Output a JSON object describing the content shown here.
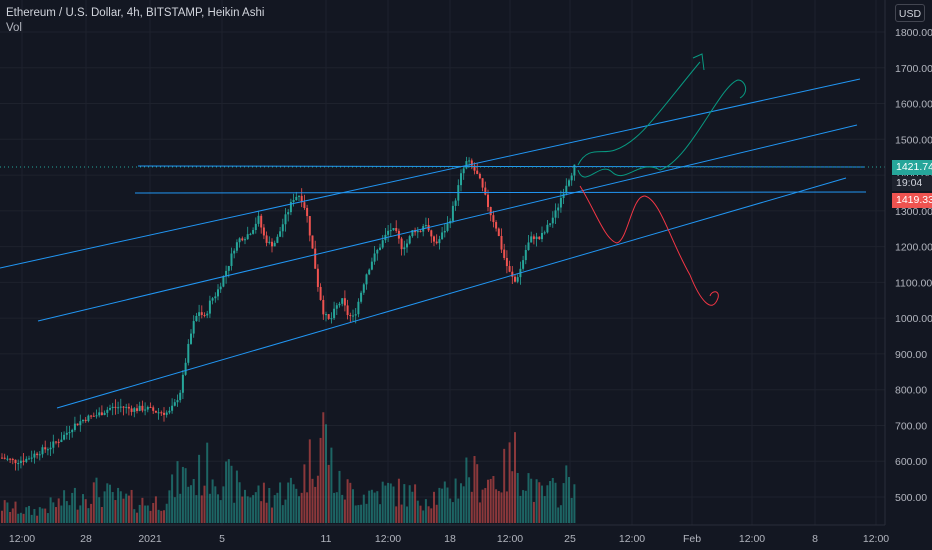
{
  "header": {
    "title": "Ethereum / U.S. Dollar, 4h, BITSTAMP, Heikin Ashi",
    "volume_label": "Vol"
  },
  "currency_button": "USD",
  "price_badges": {
    "last_price": "1421.74",
    "countdown": "19:04",
    "lower_price": "1419.33"
  },
  "colors": {
    "background": "#131722",
    "up": "#26a69a",
    "down": "#ef5350",
    "trendline": "#2196f3",
    "forecast_up": "#089981",
    "forecast_down": "#f23645"
  },
  "chart_data": {
    "type": "candlestick",
    "y_axis": {
      "ticks": [
        "1800.00",
        "1700.00",
        "1600.00",
        "1500.00",
        "1400.00",
        "1300.00",
        "1200.00",
        "1100.00",
        "1000.00",
        "900.00",
        "800.00",
        "700.00",
        "600.00",
        "500.00"
      ],
      "range": [
        460,
        1880
      ]
    },
    "x_axis": {
      "ticks": [
        "12:00",
        "28",
        "2021",
        "5",
        "11",
        "12:00",
        "18",
        "12:00",
        "25",
        "12:00",
        "Feb",
        "12:00",
        "8",
        "12:00"
      ]
    },
    "price_path": [
      [
        0,
        610
      ],
      [
        2,
        600
      ],
      [
        4,
        605
      ],
      [
        6,
        625
      ],
      [
        8,
        640
      ],
      [
        10,
        665
      ],
      [
        12,
        700
      ],
      [
        14,
        720
      ],
      [
        16,
        730
      ],
      [
        18,
        748
      ],
      [
        20,
        752
      ],
      [
        22,
        745
      ],
      [
        24,
        748
      ],
      [
        26,
        738
      ],
      [
        28,
        735
      ],
      [
        29,
        760
      ],
      [
        30,
        800
      ],
      [
        31,
        900
      ],
      [
        32,
        980
      ],
      [
        33,
        1020
      ],
      [
        34,
        1000
      ],
      [
        35,
        1050
      ],
      [
        36,
        1070
      ],
      [
        37,
        1110
      ],
      [
        38,
        1150
      ],
      [
        39,
        1200
      ],
      [
        40,
        1225
      ],
      [
        41,
        1230
      ],
      [
        42,
        1250
      ],
      [
        43,
        1280
      ],
      [
        44,
        1225
      ],
      [
        45,
        1205
      ],
      [
        46,
        1215
      ],
      [
        47,
        1260
      ],
      [
        48,
        1300
      ],
      [
        49,
        1340
      ],
      [
        50,
        1345
      ],
      [
        51,
        1300
      ],
      [
        52,
        1200
      ],
      [
        53,
        1090
      ],
      [
        54,
        1010
      ],
      [
        55,
        990
      ],
      [
        56,
        1030
      ],
      [
        57,
        1050
      ],
      [
        58,
        1010
      ],
      [
        59,
        1000
      ],
      [
        60,
        1060
      ],
      [
        61,
        1120
      ],
      [
        62,
        1160
      ],
      [
        63,
        1190
      ],
      [
        64,
        1220
      ],
      [
        65,
        1250
      ],
      [
        66,
        1240
      ],
      [
        67,
        1200
      ],
      [
        68,
        1210
      ],
      [
        69,
        1250
      ],
      [
        70,
        1240
      ],
      [
        71,
        1270
      ],
      [
        72,
        1220
      ],
      [
        73,
        1210
      ],
      [
        74,
        1240
      ],
      [
        75,
        1270
      ],
      [
        76,
        1330
      ],
      [
        77,
        1400
      ],
      [
        78,
        1440
      ],
      [
        79,
        1420
      ],
      [
        80,
        1390
      ],
      [
        81,
        1340
      ],
      [
        82,
        1290
      ],
      [
        83,
        1250
      ],
      [
        84,
        1180
      ],
      [
        85,
        1130
      ],
      [
        86,
        1100
      ],
      [
        87,
        1140
      ],
      [
        88,
        1200
      ],
      [
        89,
        1230
      ],
      [
        90,
        1220
      ],
      [
        91,
        1240
      ],
      [
        92,
        1270
      ],
      [
        93,
        1300
      ],
      [
        94,
        1350
      ],
      [
        95,
        1390
      ],
      [
        96,
        1422
      ]
    ],
    "volume_path": [
      [
        0,
        0.18
      ],
      [
        5,
        0.12
      ],
      [
        10,
        0.22
      ],
      [
        15,
        0.35
      ],
      [
        20,
        0.25
      ],
      [
        25,
        0.2
      ],
      [
        28,
        0.3
      ],
      [
        30,
        0.5
      ],
      [
        32,
        0.45
      ],
      [
        35,
        0.6
      ],
      [
        40,
        0.35
      ],
      [
        45,
        0.3
      ],
      [
        50,
        0.4
      ],
      [
        52,
        0.7
      ],
      [
        54,
        1.0
      ],
      [
        56,
        0.4
      ],
      [
        60,
        0.3
      ],
      [
        65,
        0.35
      ],
      [
        70,
        0.28
      ],
      [
        75,
        0.3
      ],
      [
        78,
        0.55
      ],
      [
        80,
        0.45
      ],
      [
        84,
        0.5
      ],
      [
        86,
        0.7
      ],
      [
        90,
        0.3
      ],
      [
        94,
        0.35
      ],
      [
        96,
        0.6
      ]
    ]
  }
}
